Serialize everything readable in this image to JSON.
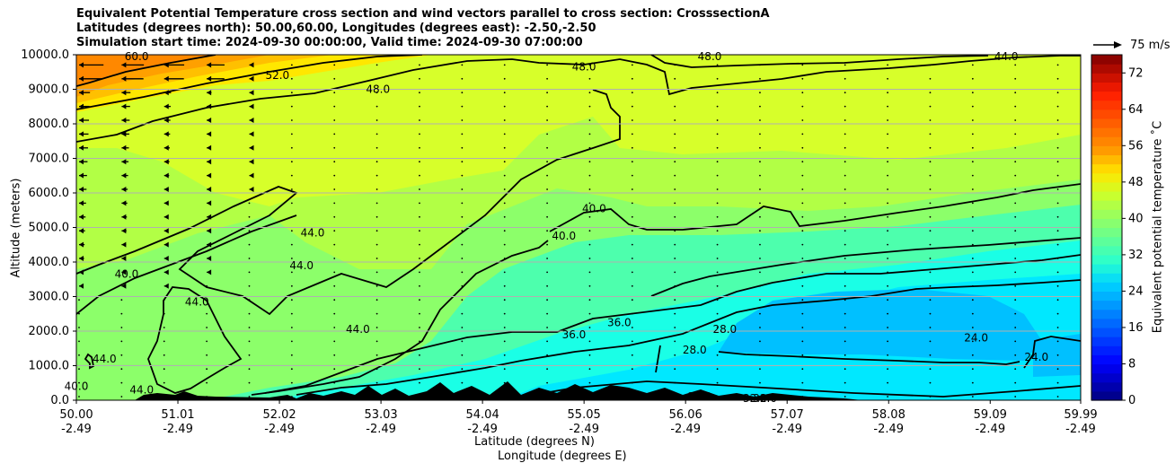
{
  "title_lines": [
    "Equivalent Potential Temperature cross section and wind vectors parallel to cross section: CrosssectionA",
    "Latitudes (degrees north): 50.00,60.00, Longitudes (degrees east): -2.50,-2.50",
    "Simulation start time: 2024-09-30 00:00:00, Valid time: 2024-09-30 07:00:00"
  ],
  "chart_data": {
    "type": "heatmap",
    "xlabel": "Latitude (degrees N)",
    "xlabel2": "Longitude (degrees E)",
    "ylabel": "Altitude (meters)",
    "ylim": [
      0,
      10000
    ],
    "xlim": [
      50.0,
      59.99
    ],
    "grid": "horizontal lines at y ticks",
    "yticks": [
      0,
      1000,
      2000,
      3000,
      4000,
      5000,
      6000,
      7000,
      8000,
      9000,
      10000
    ],
    "ytick_labels": [
      "0.0",
      "1000.0",
      "2000.0",
      "3000.0",
      "4000.0",
      "5000.0",
      "6000.0",
      "7000.0",
      "8000.0",
      "9000.0",
      "10000.0"
    ],
    "xticks": [
      50.0,
      51.01,
      52.02,
      53.03,
      54.04,
      55.05,
      56.06,
      57.07,
      58.08,
      59.09,
      59.99
    ],
    "xtick_labels_lat": [
      "50.00",
      "51.01",
      "52.02",
      "53.03",
      "54.04",
      "55.05",
      "56.06",
      "57.07",
      "58.08",
      "59.09",
      "59.99"
    ],
    "xtick_labels_lon": [
      "-2.49",
      "-2.49",
      "-2.49",
      "-2.49",
      "-2.49",
      "-2.49",
      "-2.49",
      "-2.49",
      "-2.49",
      "-2.49",
      "-2.49"
    ],
    "colorbar": {
      "label": "Equivalent potential temperature ˚C",
      "range": [
        0,
        76
      ],
      "ticks": [
        0,
        8,
        16,
        24,
        32,
        40,
        48,
        56,
        64,
        72
      ],
      "tick_labels": [
        "0",
        "8",
        "16",
        "24",
        "32",
        "40",
        "48",
        "56",
        "64",
        "72"
      ]
    },
    "quiver_key": "75 m/s",
    "contour_labels": [
      {
        "text": "60.0",
        "lat": 50.6,
        "alt": 9950
      },
      {
        "text": "52.0",
        "lat": 52.0,
        "alt": 9400
      },
      {
        "text": "48.0",
        "lat": 53.0,
        "alt": 9000
      },
      {
        "text": "48.0",
        "lat": 55.05,
        "alt": 9650
      },
      {
        "text": "48.0",
        "lat": 56.3,
        "alt": 9950
      },
      {
        "text": "44.0",
        "lat": 59.25,
        "alt": 9950
      },
      {
        "text": "44.0",
        "lat": 52.35,
        "alt": 4850
      },
      {
        "text": "44.0",
        "lat": 52.24,
        "alt": 3900
      },
      {
        "text": "44.0",
        "lat": 51.2,
        "alt": 2850
      },
      {
        "text": "44.0",
        "lat": 52.8,
        "alt": 2050
      },
      {
        "text": "44.0",
        "lat": 50.28,
        "alt": 1200
      },
      {
        "text": "44.0",
        "lat": 50.65,
        "alt": 300
      },
      {
        "text": "40.0",
        "lat": 50.5,
        "alt": 3650
      },
      {
        "text": "40.0",
        "lat": 55.15,
        "alt": 5550
      },
      {
        "text": "40.0",
        "lat": 54.85,
        "alt": 4750
      },
      {
        "text": "40.0",
        "lat": 50.0,
        "alt": 400
      },
      {
        "text": "36.0",
        "lat": 55.4,
        "alt": 2250
      },
      {
        "text": "36.0",
        "lat": 54.95,
        "alt": 1900
      },
      {
        "text": "28.0",
        "lat": 56.15,
        "alt": 1450
      },
      {
        "text": "28.0",
        "lat": 56.45,
        "alt": 2050
      },
      {
        "text": "32.0",
        "lat": 56.2,
        "alt": 100
      },
      {
        "text": "32.0",
        "lat": 56.75,
        "alt": 50
      },
      {
        "text": "32.0",
        "lat": 56.85,
        "alt": 50
      },
      {
        "text": "24.0",
        "lat": 58.95,
        "alt": 1800
      },
      {
        "text": "24.0",
        "lat": 59.55,
        "alt": 1250
      }
    ]
  }
}
